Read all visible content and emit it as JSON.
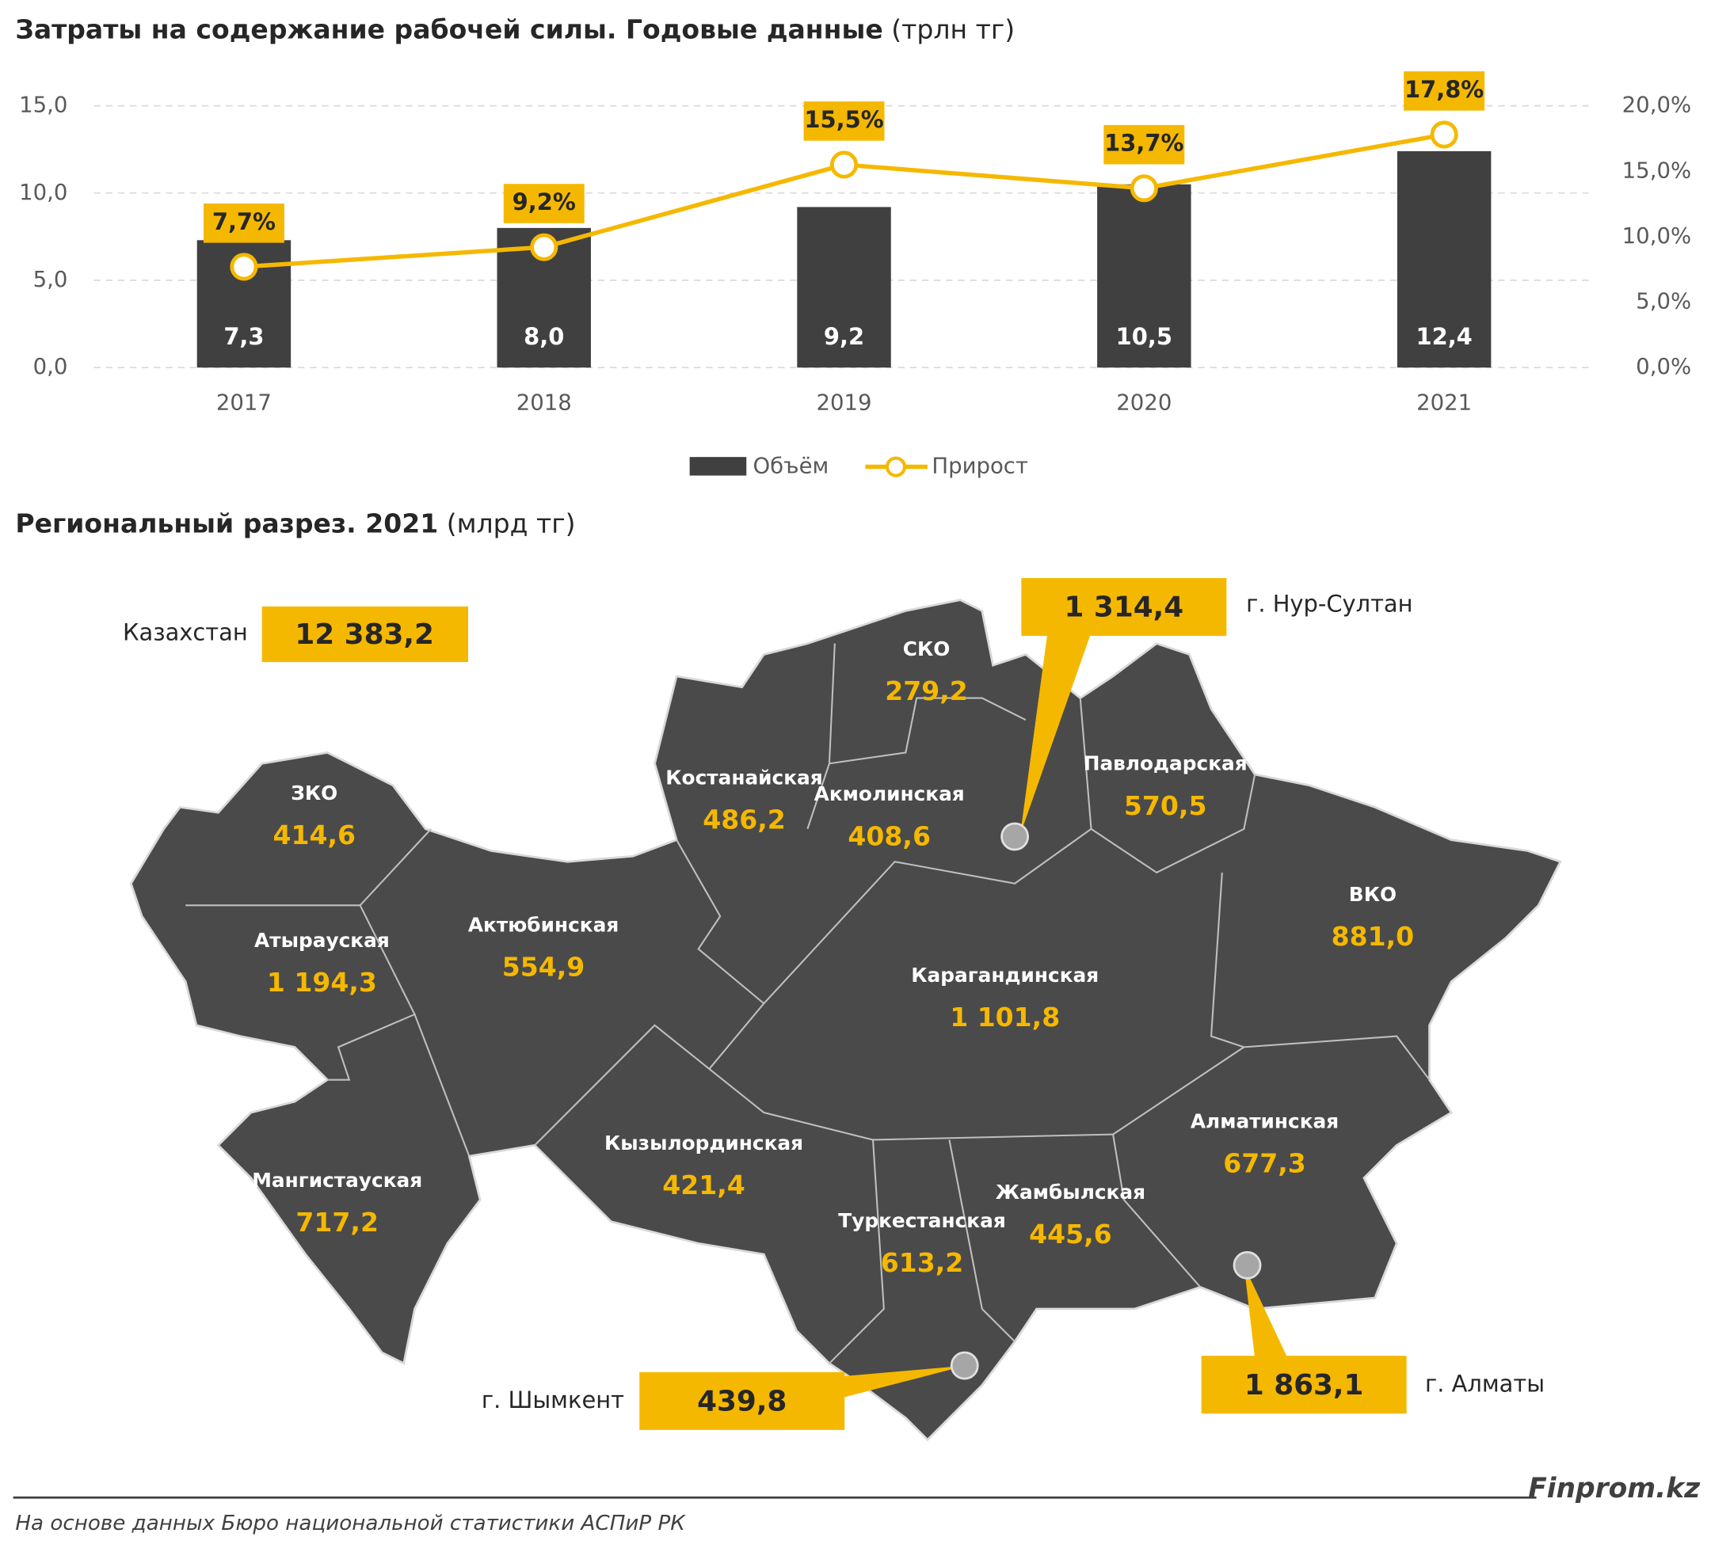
{
  "chart_data": {
    "type": "bar",
    "title": "Затраты на содержание рабочей силы. Годовые данные",
    "subtitle": "(трлн тг)",
    "categories": [
      "2017",
      "2018",
      "2019",
      "2020",
      "2021"
    ],
    "series": [
      {
        "name": "Объём",
        "color": "#404040",
        "values": [
          7.3,
          8.0,
          9.2,
          10.5,
          12.4
        ],
        "value_labels": [
          "7,3",
          "8,0",
          "9,2",
          "10,5",
          "12,4"
        ]
      },
      {
        "name": "Прирост",
        "type": "line",
        "axis": "y2",
        "color": "#f5b800",
        "values": [
          7.7,
          9.2,
          15.5,
          13.7,
          17.8
        ],
        "value_labels": [
          "7,7%",
          "9,2%",
          "15,5%",
          "13,7%",
          "17,8%"
        ]
      }
    ],
    "ylim": [
      0,
      15
    ],
    "yticks": [
      {
        "value": 0,
        "label": "0,0"
      },
      {
        "value": 5,
        "label": "5,0"
      },
      {
        "value": 10,
        "label": "10,0"
      },
      {
        "value": 15,
        "label": "15,0"
      }
    ],
    "y2lim": [
      0,
      20
    ],
    "y2ticks": [
      {
        "value": 0,
        "label": "0,0%"
      },
      {
        "value": 5,
        "label": "5,0%"
      },
      {
        "value": 10,
        "label": "10,0%"
      },
      {
        "value": 15,
        "label": "15,0%"
      },
      {
        "value": 20,
        "label": "20,0%"
      }
    ],
    "grid": true,
    "legend": "bottom"
  },
  "map": {
    "title": "Региональный разрез. 2021",
    "unit": "(млрд тг)",
    "country": {
      "name": "Казахстан",
      "value": "12 383,2"
    },
    "regions": [
      {
        "name": "СКО",
        "value": "279,2"
      },
      {
        "name": "Костанайская",
        "value": "486,2"
      },
      {
        "name": "Акмолинская",
        "value": "408,6"
      },
      {
        "name": "Павлодарская",
        "value": "570,5"
      },
      {
        "name": "ЗКО",
        "value": "414,6"
      },
      {
        "name": "ВКО",
        "value": "881,0"
      },
      {
        "name": "Атырауская",
        "value": "1 194,3"
      },
      {
        "name": "Актюбинская",
        "value": "554,9"
      },
      {
        "name": "Карагандинская",
        "value": "1 101,8"
      },
      {
        "name": "Алматинская",
        "value": "677,3"
      },
      {
        "name": "Кызылординская",
        "value": "421,4"
      },
      {
        "name": "Мангистауская",
        "value": "717,2"
      },
      {
        "name": "Туркестанская",
        "value": "613,2"
      },
      {
        "name": "Жамбылская",
        "value": "445,6"
      }
    ],
    "cities": [
      {
        "name": "г. Нур-Султан",
        "value": "1 314,4"
      },
      {
        "name": "г. Алматы",
        "value": "1 863,1"
      },
      {
        "name": "г. Шымкент",
        "value": "439,8"
      }
    ]
  },
  "footer": {
    "brand": "Finprom.kz",
    "source": "На основе данных Бюро национальной статистики АСПиР РК"
  }
}
